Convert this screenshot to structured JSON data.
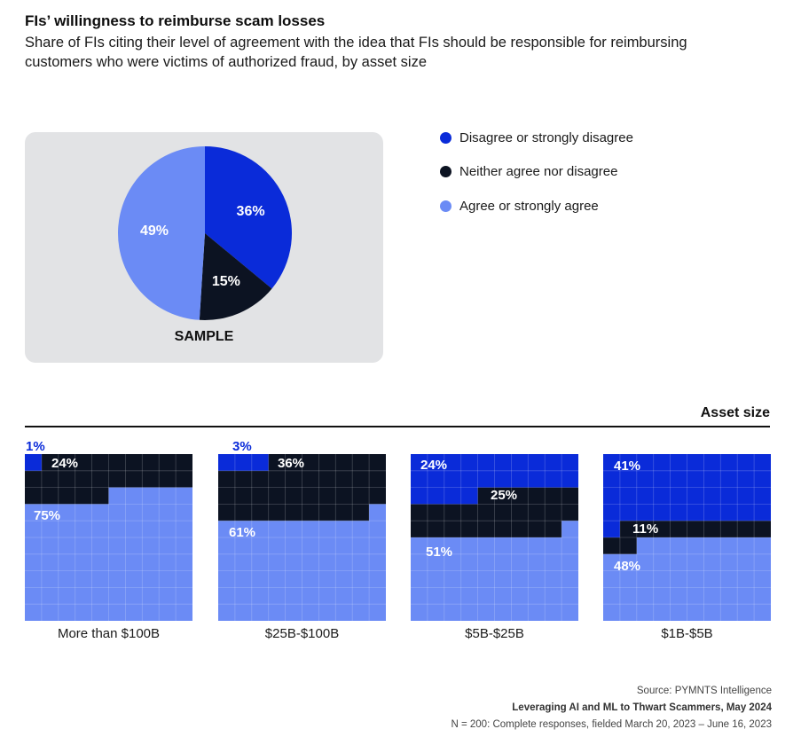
{
  "header": {
    "title": "FIs’ willingness to reimburse scam losses",
    "subtitle": "Share of FIs citing their level of agreement with the idea that FIs should be responsible for reimbursing customers who were victims of authorized fraud, by asset size"
  },
  "colors": {
    "disagree": "#0a2bd9",
    "neither": "#0c1322",
    "agree": "#6b8bf5",
    "panel": "#e2e3e5"
  },
  "legend": [
    {
      "label": "Disagree or strongly disagree",
      "color": "#0a2bd9"
    },
    {
      "label": "Neither agree nor disagree",
      "color": "#0c1322"
    },
    {
      "label": "Agree or strongly agree",
      "color": "#6b8bf5"
    }
  ],
  "chart_data": [
    {
      "type": "pie",
      "title": "SAMPLE",
      "slices": [
        {
          "label": "Disagree or strongly disagree",
          "value": 36,
          "display": "36%"
        },
        {
          "label": "Neither agree nor disagree",
          "value": 15,
          "display": "15%"
        },
        {
          "label": "Agree or strongly agree",
          "value": 49,
          "display": "49%"
        }
      ]
    },
    {
      "type": "waffle",
      "title": "Asset size",
      "series_names": [
        "Disagree or strongly disagree",
        "Neither agree nor disagree",
        "Agree or strongly agree"
      ],
      "categories": [
        "More than $100B",
        "$25B-$100B",
        "$5B-$25B",
        "$1B-$5B"
      ],
      "groups": [
        {
          "category": "More than $100B",
          "values": [
            1,
            24,
            75
          ],
          "labels": [
            "1%",
            "24%",
            "75%"
          ]
        },
        {
          "category": "$25B-$100B",
          "values": [
            3,
            36,
            61
          ],
          "labels": [
            "3%",
            "36%",
            "61%"
          ]
        },
        {
          "category": "$5B-$25B",
          "values": [
            24,
            25,
            51
          ],
          "labels": [
            "24%",
            "25%",
            "51%"
          ]
        },
        {
          "category": "$1B-$5B",
          "values": [
            41,
            11,
            48
          ],
          "labels": [
            "41%",
            "11%",
            "48%"
          ]
        }
      ]
    }
  ],
  "footer": {
    "source": "Source: PYMNTS Intelligence",
    "report": "Leveraging AI and ML to Thwart Scammers, May 2024",
    "note": "N = 200: Complete responses, fielded March 20, 2023 – June 16, 2023"
  }
}
